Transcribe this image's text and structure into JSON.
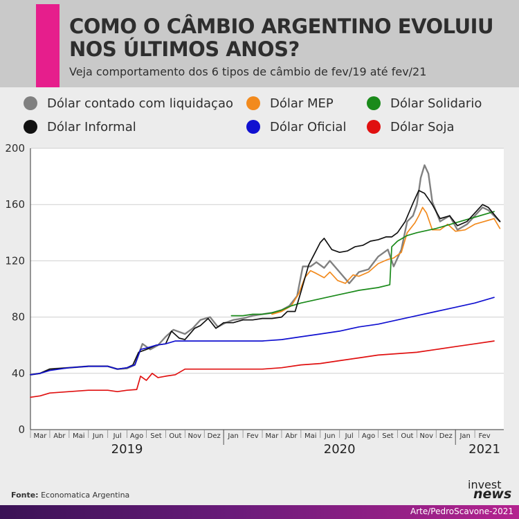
{
  "header": {
    "title_line1": "COMO O CÂMBIO ARGENTINO EVOLUIU",
    "title_line2": "NOS ÚLTIMOS ANOS?",
    "subtitle": "Veja comportamento dos 6 tipos de câmbio de fev/19 até fev/21"
  },
  "source": {
    "label": "Fonte:",
    "text": "Economatica Argentina"
  },
  "logo": {
    "top": "invest",
    "bottom": "news"
  },
  "footer": {
    "credit": "Arte/PedroScavone-2021"
  },
  "chart_data": {
    "type": "line",
    "title": "COMO O CÂMBIO ARGENTINO EVOLUIU NOS ÚLTIMOS ANOS?",
    "subtitle": "Veja comportamento dos 6 tipos de câmbio de fev/19 até fev/21",
    "ylim": [
      0,
      200
    ],
    "yticks": [
      0,
      40,
      80,
      120,
      160,
      200
    ],
    "xlim": [
      0,
      24.5
    ],
    "months": [
      "Mar",
      "Abr",
      "Mai",
      "Jun",
      "Jul",
      "Ago",
      "Set",
      "Out",
      "Nov",
      "Dez",
      "Jan",
      "Fev",
      "Mar",
      "Abr",
      "Mai",
      "Jun",
      "Jul",
      "Ago",
      "Set",
      "Out",
      "Nov",
      "Dez",
      "Jan",
      "Fev"
    ],
    "years": [
      {
        "label": "2019",
        "center": 5
      },
      {
        "label": "2020",
        "center": 16
      },
      {
        "label": "2021",
        "center": 23.5
      }
    ],
    "grid": true,
    "legend_position": "top",
    "series": [
      {
        "name": "Dólar contado com liquidaçao",
        "color": "#808080",
        "points": [
          [
            0,
            39
          ],
          [
            0.5,
            40
          ],
          [
            1,
            43
          ],
          [
            2,
            44
          ],
          [
            3,
            45
          ],
          [
            4,
            45
          ],
          [
            4.5,
            43
          ],
          [
            5,
            43.5
          ],
          [
            5.4,
            46
          ],
          [
            5.8,
            61
          ],
          [
            6.2,
            57
          ],
          [
            6.6,
            60
          ],
          [
            7,
            66
          ],
          [
            7.4,
            71
          ],
          [
            8,
            68
          ],
          [
            8.4,
            72
          ],
          [
            8.8,
            78
          ],
          [
            9.3,
            80
          ],
          [
            9.7,
            73
          ],
          [
            10.1,
            76
          ],
          [
            10.5,
            78
          ],
          [
            11,
            79
          ],
          [
            11.5,
            81
          ],
          [
            12,
            82
          ],
          [
            12.5,
            83
          ],
          [
            13,
            85
          ],
          [
            13.4,
            88
          ],
          [
            13.8,
            95
          ],
          [
            14.1,
            116
          ],
          [
            14.5,
            116
          ],
          [
            14.8,
            119
          ],
          [
            15.2,
            115
          ],
          [
            15.5,
            120
          ],
          [
            16,
            112
          ],
          [
            16.5,
            104
          ],
          [
            17,
            112
          ],
          [
            17.5,
            114
          ],
          [
            18,
            123
          ],
          [
            18.5,
            128
          ],
          [
            18.8,
            116
          ],
          [
            19.2,
            128
          ],
          [
            19.5,
            148
          ],
          [
            19.8,
            152
          ],
          [
            20,
            160
          ],
          [
            20.2,
            179
          ],
          [
            20.4,
            188
          ],
          [
            20.6,
            182
          ],
          [
            20.8,
            162
          ],
          [
            21.2,
            148
          ],
          [
            21.7,
            152
          ],
          [
            22.1,
            142
          ],
          [
            22.6,
            146
          ],
          [
            23,
            152
          ],
          [
            23.4,
            158
          ],
          [
            23.7,
            156
          ],
          [
            24,
            152
          ],
          [
            24.3,
            148
          ]
        ]
      },
      {
        "name": "Dólar MEP",
        "color": "#f28a1d",
        "points": [
          [
            12.5,
            82
          ],
          [
            13,
            84
          ],
          [
            13.5,
            88
          ],
          [
            13.9,
            97
          ],
          [
            14.2,
            108
          ],
          [
            14.5,
            113
          ],
          [
            14.8,
            111
          ],
          [
            15.2,
            108
          ],
          [
            15.5,
            112
          ],
          [
            15.9,
            106
          ],
          [
            16.3,
            104
          ],
          [
            16.7,
            110
          ],
          [
            17,
            109
          ],
          [
            17.5,
            112
          ],
          [
            18,
            118
          ],
          [
            18.5,
            121
          ],
          [
            18.8,
            122
          ],
          [
            19.2,
            126
          ],
          [
            19.5,
            140
          ],
          [
            19.9,
            147
          ],
          [
            20.1,
            152
          ],
          [
            20.3,
            158
          ],
          [
            20.5,
            154
          ],
          [
            20.8,
            142
          ],
          [
            21.2,
            142
          ],
          [
            21.6,
            146
          ],
          [
            22,
            141
          ],
          [
            22.5,
            142
          ],
          [
            23,
            146
          ],
          [
            23.5,
            148
          ],
          [
            24,
            150
          ],
          [
            24.3,
            143
          ]
        ]
      },
      {
        "name": "Dólar Solidario",
        "color": "#1a8a1a",
        "points": [
          [
            10.4,
            81
          ],
          [
            11,
            81
          ],
          [
            11.5,
            82
          ],
          [
            12,
            82
          ],
          [
            12.5,
            83
          ],
          [
            13,
            85
          ],
          [
            13.5,
            88
          ],
          [
            14,
            90
          ],
          [
            15,
            93
          ],
          [
            16,
            96
          ],
          [
            17,
            99
          ],
          [
            18,
            101
          ],
          [
            18.6,
            103
          ],
          [
            18.7,
            130
          ],
          [
            19,
            134
          ],
          [
            19.5,
            138
          ],
          [
            20,
            140
          ],
          [
            21,
            143
          ],
          [
            22,
            147
          ],
          [
            23,
            151
          ],
          [
            24,
            155
          ]
        ]
      },
      {
        "name": "Dólar Informal",
        "color": "#111111",
        "points": [
          [
            0,
            39
          ],
          [
            0.5,
            40
          ],
          [
            1,
            43
          ],
          [
            2,
            44
          ],
          [
            3,
            45
          ],
          [
            4,
            45
          ],
          [
            4.5,
            43
          ],
          [
            5,
            44
          ],
          [
            5.3,
            46
          ],
          [
            5.6,
            55
          ],
          [
            6,
            57
          ],
          [
            6.5,
            60
          ],
          [
            7,
            61
          ],
          [
            7.3,
            70
          ],
          [
            7.7,
            65
          ],
          [
            8,
            64
          ],
          [
            8.5,
            72
          ],
          [
            8.8,
            74
          ],
          [
            9.2,
            79
          ],
          [
            9.6,
            72
          ],
          [
            10,
            76
          ],
          [
            10.5,
            76
          ],
          [
            11,
            78
          ],
          [
            11.5,
            78
          ],
          [
            12,
            79
          ],
          [
            12.5,
            79
          ],
          [
            13,
            80
          ],
          [
            13.3,
            84
          ],
          [
            13.7,
            84
          ],
          [
            14,
            98
          ],
          [
            14.4,
            117
          ],
          [
            14.7,
            125
          ],
          [
            15,
            133
          ],
          [
            15.2,
            136
          ],
          [
            15.6,
            128
          ],
          [
            16,
            126
          ],
          [
            16.4,
            127
          ],
          [
            16.8,
            130
          ],
          [
            17.2,
            131
          ],
          [
            17.6,
            134
          ],
          [
            18,
            135
          ],
          [
            18.4,
            137
          ],
          [
            18.7,
            137
          ],
          [
            19,
            140
          ],
          [
            19.4,
            148
          ],
          [
            19.8,
            161
          ],
          [
            20.1,
            170
          ],
          [
            20.4,
            168
          ],
          [
            20.8,
            160
          ],
          [
            21.2,
            150
          ],
          [
            21.7,
            152
          ],
          [
            22.1,
            145
          ],
          [
            22.6,
            148
          ],
          [
            23,
            154
          ],
          [
            23.4,
            160
          ],
          [
            23.7,
            158
          ],
          [
            24,
            153
          ],
          [
            24.3,
            148
          ]
        ]
      },
      {
        "name": "Dólar Oficial",
        "color": "#1010d0",
        "points": [
          [
            0,
            39
          ],
          [
            0.5,
            40
          ],
          [
            1,
            42
          ],
          [
            2,
            44
          ],
          [
            3,
            45
          ],
          [
            4,
            45
          ],
          [
            4.5,
            43
          ],
          [
            5,
            44
          ],
          [
            5.4,
            46
          ],
          [
            5.7,
            57
          ],
          [
            6,
            58
          ],
          [
            6.5,
            60
          ],
          [
            7,
            61
          ],
          [
            7.5,
            63
          ],
          [
            8,
            63
          ],
          [
            9,
            63
          ],
          [
            10,
            63
          ],
          [
            11,
            63
          ],
          [
            12,
            63
          ],
          [
            13,
            64
          ],
          [
            14,
            66
          ],
          [
            15,
            68
          ],
          [
            16,
            70
          ],
          [
            17,
            73
          ],
          [
            18,
            75
          ],
          [
            19,
            78
          ],
          [
            20,
            81
          ],
          [
            21,
            84
          ],
          [
            22,
            87
          ],
          [
            23,
            90
          ],
          [
            24,
            94
          ]
        ]
      },
      {
        "name": "Dólar Soja",
        "color": "#e01010",
        "points": [
          [
            0,
            23
          ],
          [
            0.5,
            24
          ],
          [
            1,
            26
          ],
          [
            2,
            27
          ],
          [
            3,
            28
          ],
          [
            4,
            28
          ],
          [
            4.5,
            27
          ],
          [
            5,
            28
          ],
          [
            5.5,
            28.5
          ],
          [
            5.7,
            38
          ],
          [
            6,
            35
          ],
          [
            6.3,
            40
          ],
          [
            6.6,
            37
          ],
          [
            7,
            38
          ],
          [
            7.5,
            39
          ],
          [
            8,
            43
          ],
          [
            9,
            43
          ],
          [
            10,
            43
          ],
          [
            11,
            43
          ],
          [
            12,
            43
          ],
          [
            13,
            44
          ],
          [
            14,
            46
          ],
          [
            15,
            47
          ],
          [
            16,
            49
          ],
          [
            17,
            51
          ],
          [
            18,
            53
          ],
          [
            19,
            54
          ],
          [
            20,
            55
          ],
          [
            21,
            57
          ],
          [
            22,
            59
          ],
          [
            23,
            61
          ],
          [
            24,
            63
          ]
        ]
      }
    ]
  }
}
